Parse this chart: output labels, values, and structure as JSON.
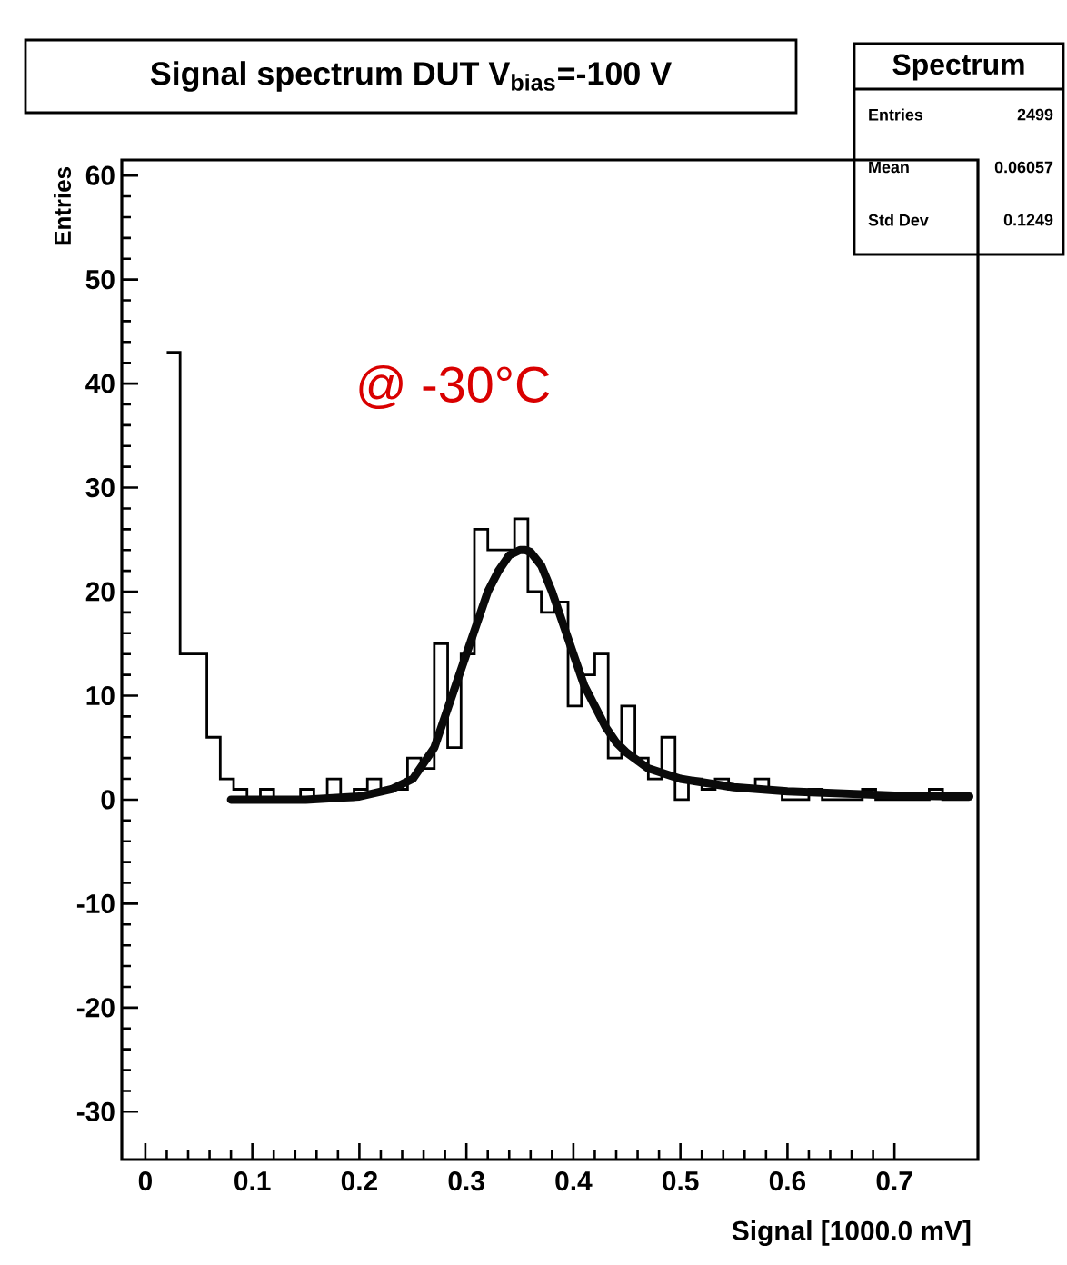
{
  "chart_data": {
    "type": "histogram",
    "title": "Signal spectrum DUT V$_{bias}$=-100 V",
    "xlabel": "Signal [1000.0 mV]",
    "ylabel": "Entries",
    "bins": [
      0.02,
      0.0325,
      0.045,
      0.0575,
      0.07,
      0.0825,
      0.095,
      0.1075,
      0.12,
      0.1325,
      0.145,
      0.1575,
      0.17,
      0.1825,
      0.195,
      0.2075,
      0.22,
      0.2325,
      0.245,
      0.2575,
      0.27,
      0.2825,
      0.295,
      0.3075,
      0.32,
      0.3325,
      0.345,
      0.3575,
      0.37,
      0.3825,
      0.395,
      0.4075,
      0.42,
      0.4325,
      0.445,
      0.4575,
      0.47,
      0.4825,
      0.495,
      0.5075,
      0.52,
      0.5325,
      0.545,
      0.5575,
      0.57,
      0.5825,
      0.595,
      0.6075,
      0.62,
      0.6325,
      0.645,
      0.6575,
      0.67,
      0.6825,
      0.695,
      0.7075,
      0.72,
      0.7325,
      0.745,
      0.7575,
      0.77
    ],
    "series": [
      {
        "type": "histogram",
        "color": "#000000",
        "values": [
          43,
          14,
          14,
          6,
          2,
          1,
          0,
          1,
          0,
          0,
          1,
          0,
          2,
          0,
          1,
          2,
          1,
          1,
          4,
          3,
          15,
          5,
          14,
          26,
          24,
          24,
          27,
          20,
          18,
          19,
          9,
          12,
          14,
          4,
          9,
          4,
          2,
          6,
          0,
          2,
          1,
          2,
          1,
          1,
          2,
          1,
          0,
          0,
          1,
          0,
          0,
          0,
          1,
          0,
          0,
          0,
          0,
          1,
          0,
          0
        ]
      },
      {
        "type": "line",
        "color": "#0a0a0a",
        "x": [
          0.08,
          0.15,
          0.2,
          0.23,
          0.25,
          0.27,
          0.28,
          0.29,
          0.3,
          0.31,
          0.32,
          0.33,
          0.34,
          0.35,
          0.355,
          0.36,
          0.37,
          0.38,
          0.39,
          0.4,
          0.41,
          0.42,
          0.43,
          0.44,
          0.45,
          0.47,
          0.5,
          0.55,
          0.6,
          0.65,
          0.7,
          0.77
        ],
        "values": [
          0,
          0,
          0.3,
          1,
          2,
          5,
          8,
          11,
          14,
          17,
          20,
          22,
          23.5,
          24,
          24,
          23.8,
          22.5,
          20,
          17,
          14,
          11,
          9,
          7,
          5.5,
          4.5,
          3,
          2,
          1.2,
          0.8,
          0.6,
          0.4,
          0.3
        ]
      }
    ],
    "xlim": [
      -0.022,
      0.778
    ],
    "ylim": [
      -34.6,
      61.5
    ],
    "xticks": [
      0,
      0.1,
      0.2,
      0.3,
      0.4,
      0.5,
      0.6,
      0.7
    ],
    "yticks": [
      -30,
      -20,
      -10,
      0,
      10,
      20,
      30,
      40,
      50,
      60
    ],
    "annotations": [
      "@ -30°C",
      "Spectrum",
      "Entries",
      "2499",
      "Mean",
      "0.06057",
      "Std Dev",
      "0.1249"
    ]
  }
}
